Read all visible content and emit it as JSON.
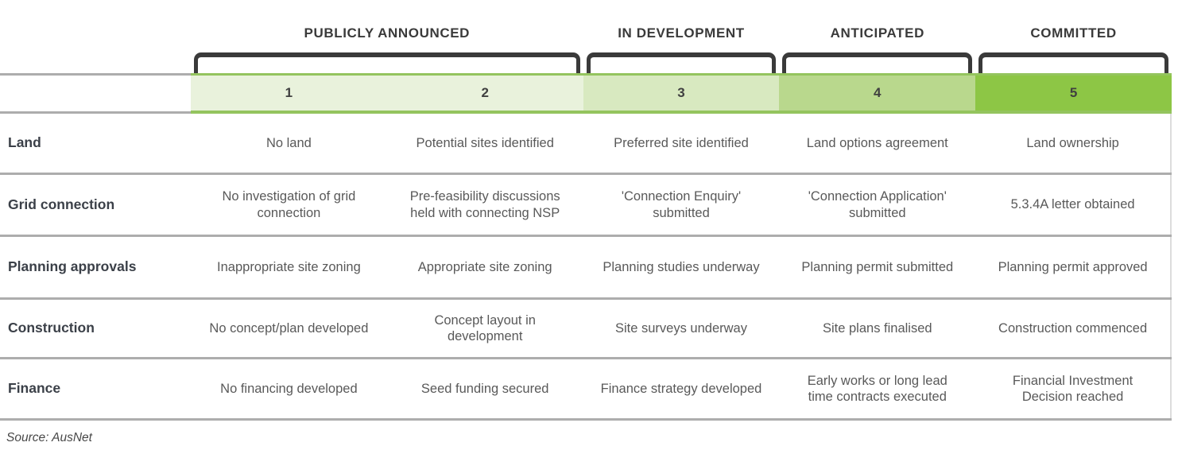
{
  "colors": {
    "page_bg": "#ffffff",
    "heading_text": "#3a3a3a",
    "bracket": "#3a3a3a",
    "band_border": "#94c45e",
    "divider": "#adadad",
    "number_text": "#404040",
    "label_text": "#3b4048",
    "cell_text": "#595959",
    "source_text": "#484848"
  },
  "stage_groups": [
    {
      "label": "PUBLICLY ANNOUNCED",
      "stage_span": 2
    },
    {
      "label": "IN DEVELOPMENT",
      "stage_span": 1
    },
    {
      "label": "ANTICIPATED",
      "stage_span": 1
    },
    {
      "label": "COMMITTED",
      "stage_span": 1
    }
  ],
  "stages": [
    {
      "number": "1",
      "color": "#e9f2dc"
    },
    {
      "number": "2",
      "color": "#e9f2dc"
    },
    {
      "number": "3",
      "color": "#d8e9c0"
    },
    {
      "number": "4",
      "color": "#b9d88d"
    },
    {
      "number": "5",
      "color": "#8dc645"
    }
  ],
  "rows": [
    {
      "label": "Land",
      "cells": [
        "No land",
        "Potential sites identified",
        "Preferred site identified",
        "Land options agreement",
        "Land ownership"
      ]
    },
    {
      "label": "Grid connection",
      "cells": [
        "No investigation of grid connection",
        "Pre-feasibility discussions held with connecting NSP",
        "'Connection Enquiry' submitted",
        "'Connection Application' submitted",
        "5.3.4A letter obtained"
      ]
    },
    {
      "label": "Planning approvals",
      "cells": [
        "Inappropriate site zoning",
        "Appropriate site zoning",
        "Planning studies underway",
        "Planning permit submitted",
        "Planning permit approved"
      ]
    },
    {
      "label": "Construction",
      "cells": [
        "No concept/plan developed",
        "Concept layout in development",
        "Site surveys underway",
        "Site plans finalised",
        "Construction commenced"
      ]
    },
    {
      "label": "Finance",
      "cells": [
        "No financing developed",
        "Seed funding secured",
        "Finance strategy developed",
        "Early works or long lead time contracts executed",
        "Financial Investment Decision reached"
      ]
    }
  ],
  "source": "Source: AusNet"
}
